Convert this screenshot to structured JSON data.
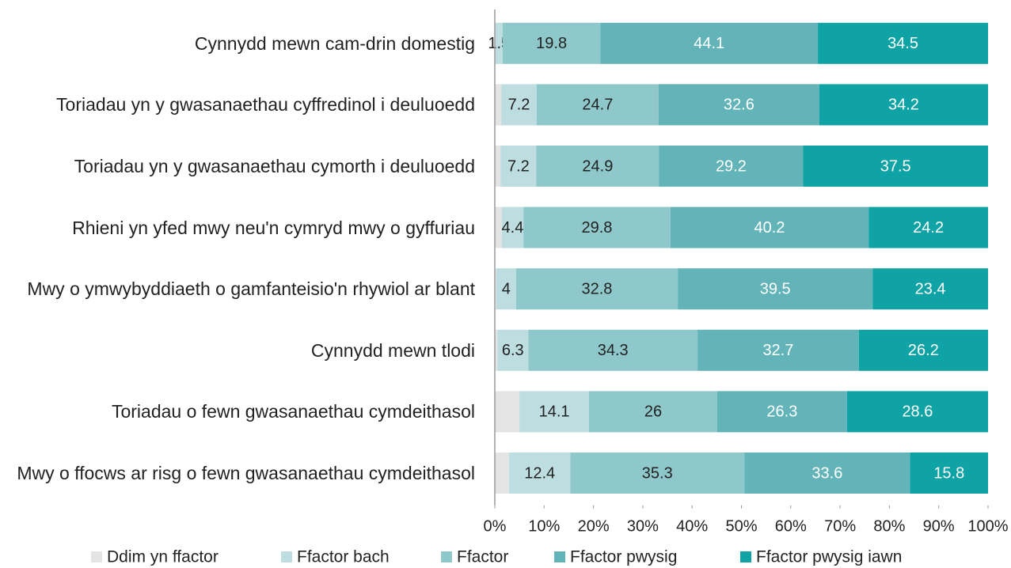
{
  "chart_data": {
    "type": "stacked-barh",
    "categories": [
      "Cynnydd mewn cam-drin domestig",
      "Toriadau yn y gwasanaethau cyffredinol i deuluoedd",
      "Toriadau yn y gwasanaethau cymorth i deuluoedd",
      "Rhieni yn yfed mwy neu'n cymryd mwy o gyffuriau",
      "Mwy o ymwybyddiaeth o gamfanteisio'n rhywiol ar blant",
      "Cynnydd mewn tlodi",
      "Toriadau o fewn gwasanaethau cymdeithasol",
      "Mwy o ffocws ar risg o fewn gwasanaethau cymdeithasol"
    ],
    "series": [
      {
        "name": "Ddim yn ffactor",
        "color": "#e4e4e4",
        "data_labels": false,
        "values": [
          0.1,
          1.3,
          1.2,
          1.4,
          0.3,
          0.5,
          5,
          2.9
        ]
      },
      {
        "name": "Ffactor bach",
        "color": "#bddde0",
        "label_color": "#222222",
        "values": [
          1.5,
          7.2,
          7.2,
          4.4,
          4,
          6.3,
          14.1,
          12.4
        ]
      },
      {
        "name": "Ffactor",
        "color": "#8fc8cb",
        "label_color": "#222222",
        "values": [
          19.8,
          24.7,
          24.9,
          29.8,
          32.8,
          34.3,
          26,
          35.3
        ]
      },
      {
        "name": "Ffactor pwysig",
        "color": "#62b4b8",
        "label_color": "#ffffff",
        "values": [
          44.1,
          32.6,
          29.2,
          40.2,
          39.5,
          32.7,
          26.3,
          33.6
        ]
      },
      {
        "name": "Ffactor pwysig iawn",
        "color": "#0fa3a5",
        "label_color": "#ffffff",
        "values": [
          34.5,
          34.2,
          37.5,
          24.2,
          23.4,
          26.2,
          28.6,
          15.8
        ]
      }
    ],
    "xlim": [
      0,
      100
    ],
    "xticks": [
      {
        "value": 0,
        "label": "0%"
      },
      {
        "value": 10,
        "label": "10%"
      },
      {
        "value": 20,
        "label": "20%"
      },
      {
        "value": 30,
        "label": "30%"
      },
      {
        "value": 40,
        "label": "40%"
      },
      {
        "value": 50,
        "label": "50%"
      },
      {
        "value": 60,
        "label": "60%"
      },
      {
        "value": 70,
        "label": "70%"
      },
      {
        "value": 80,
        "label": "80%"
      },
      {
        "value": 90,
        "label": "90%"
      },
      {
        "value": 100,
        "label": "100%"
      }
    ],
    "legend": "bottom"
  }
}
